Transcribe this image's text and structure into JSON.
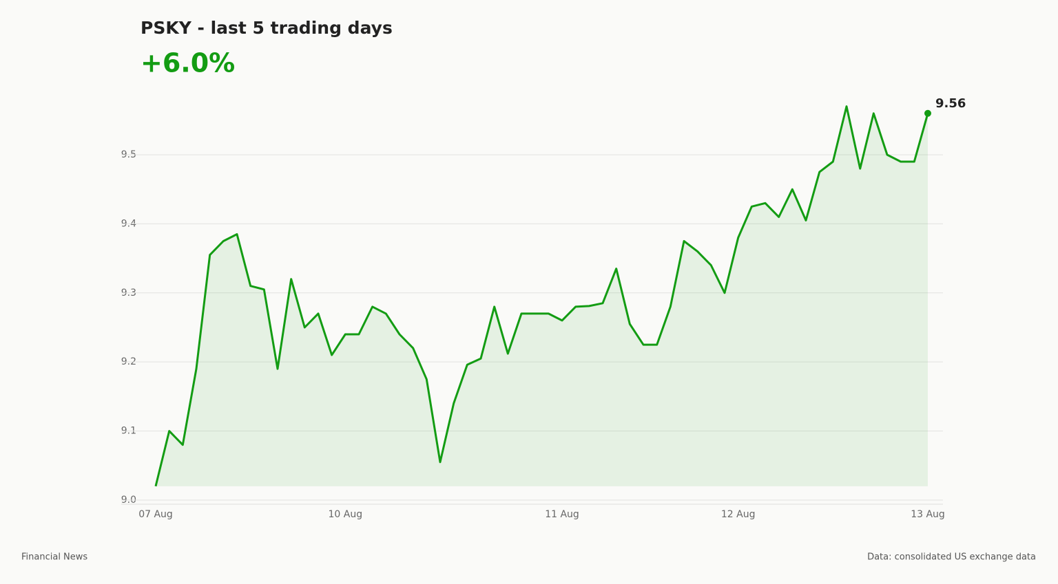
{
  "chart_data": {
    "type": "area",
    "title": "PSKY - last 5 trading days",
    "subtitle": "+6.0%",
    "footer": "Financial News",
    "source": "Data: consolidated US exchange data",
    "color": "#139c13",
    "categories": [
      "07 Aug",
      null,
      null,
      null,
      null,
      null,
      null,
      null,
      null,
      null,
      null,
      null,
      null,
      null,
      "10 Aug",
      null,
      null,
      null,
      null,
      null,
      null,
      null,
      null,
      null,
      null,
      null,
      null,
      null,
      null,
      null,
      "11 Aug",
      null,
      null,
      null,
      null,
      null,
      null,
      null,
      null,
      null,
      null,
      null,
      null,
      "12 Aug",
      null,
      null,
      null,
      null,
      null,
      null,
      null,
      null,
      null,
      null,
      null,
      null,
      null,
      "13 Aug"
    ],
    "values": [
      9.02,
      9.1,
      9.08,
      9.19,
      9.355,
      9.375,
      9.385,
      9.31,
      9.305,
      9.19,
      9.32,
      9.25,
      9.27,
      9.21,
      9.24,
      9.24,
      9.28,
      9.27,
      9.24,
      9.22,
      9.175,
      9.055,
      9.14,
      9.196,
      9.205,
      9.28,
      9.212,
      9.27,
      9.27,
      9.27,
      9.26,
      9.28,
      9.281,
      9.285,
      9.335,
      9.255,
      9.225,
      9.225,
      9.28,
      9.375,
      9.36,
      9.34,
      9.3,
      9.38,
      9.425,
      9.43,
      9.41,
      9.45,
      9.405,
      9.475,
      9.49,
      9.57,
      9.48,
      9.56,
      9.5,
      9.49,
      9.49,
      9.56
    ],
    "ylim": [
      8.994,
      9.6
    ],
    "yticks": [
      {
        "value": 9,
        "label": "9.0"
      },
      9.1,
      9.2,
      9.3,
      9.4,
      9.5
    ],
    "grid": true
  }
}
